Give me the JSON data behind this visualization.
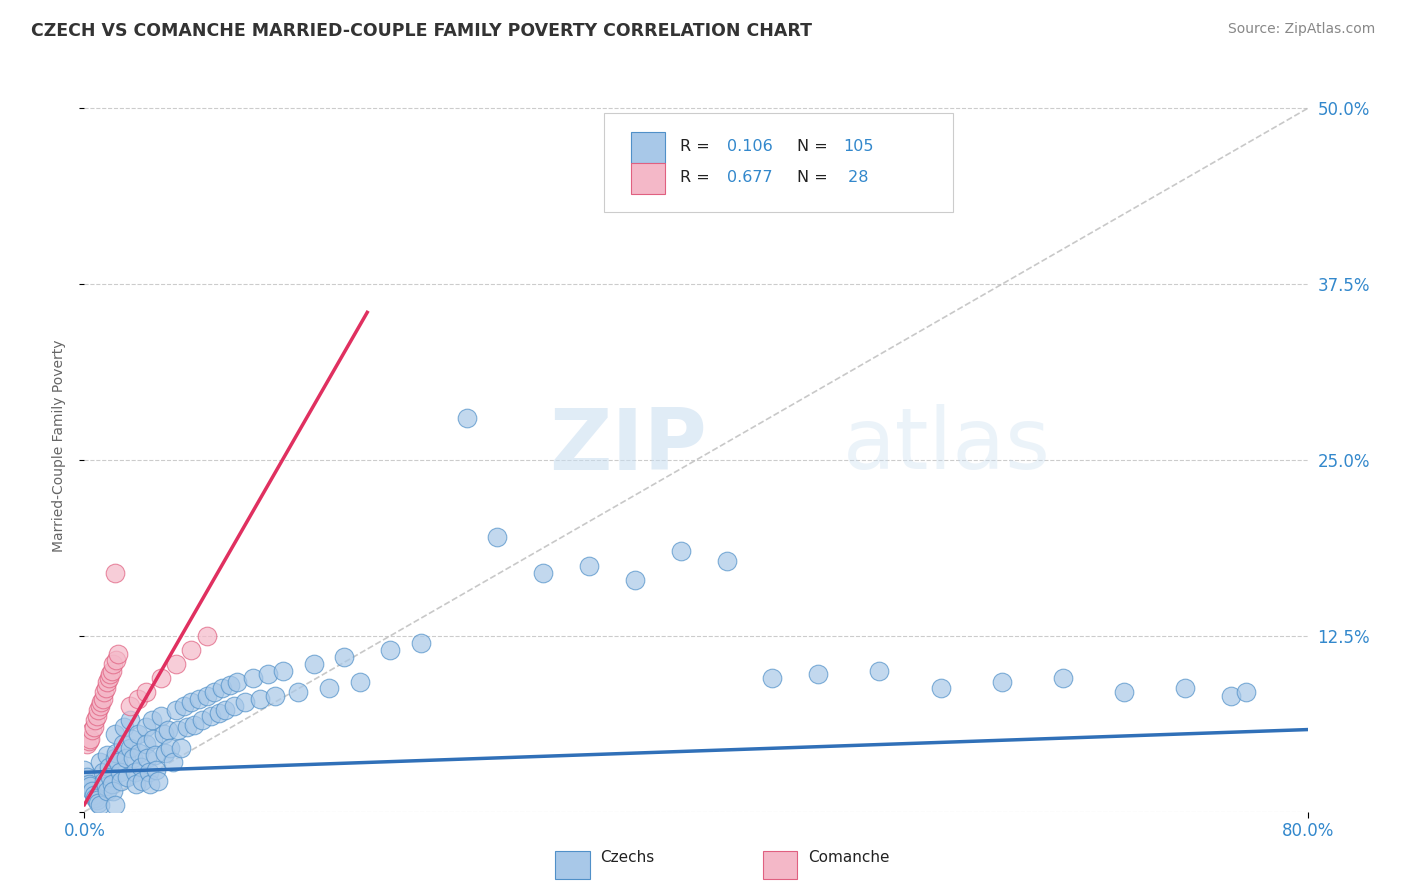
{
  "title": "CZECH VS COMANCHE MARRIED-COUPLE FAMILY POVERTY CORRELATION CHART",
  "source_text": "Source: ZipAtlas.com",
  "ylabel": "Married-Couple Family Poverty",
  "xmin": 0.0,
  "xmax": 0.8,
  "ymin": 0.0,
  "ymax": 0.52,
  "ytick_positions": [
    0.0,
    0.125,
    0.25,
    0.375,
    0.5
  ],
  "ytick_labels": [
    "",
    "12.5%",
    "25.0%",
    "37.5%",
    "50.0%"
  ],
  "czech_R": 0.106,
  "czech_N": 105,
  "comanche_R": 0.677,
  "comanche_N": 28,
  "blue_color": "#a8c8e8",
  "pink_color": "#f4b8c8",
  "blue_edge_color": "#5090c8",
  "pink_edge_color": "#e06080",
  "blue_line_color": "#3070b8",
  "pink_line_color": "#e03060",
  "title_color": "#333333",
  "stat_color": "#3388cc",
  "background_color": "#ffffff",
  "grid_color": "#cccccc",
  "watermark_text": "ZIPatlas",
  "czech_trend_intercept": 0.028,
  "czech_trend_slope": 0.038,
  "comanche_trend_x0": 0.0,
  "comanche_trend_y0": 0.005,
  "comanche_trend_x1": 0.185,
  "comanche_trend_y1": 0.355
}
